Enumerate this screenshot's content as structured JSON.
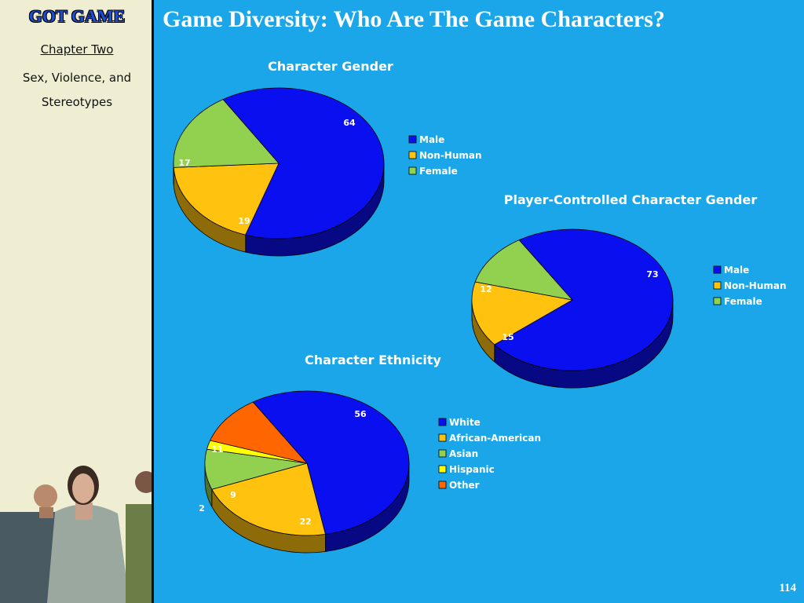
{
  "sidebar": {
    "brand": "GOT GAME",
    "chapter": "Chapter Two",
    "subtitle_line1": "Sex, Violence, and",
    "subtitle_line2": "Stereotypes"
  },
  "slide": {
    "title": "Game Diversity: Who Are The Game Characters?",
    "page_number": "114"
  },
  "chart_data": [
    {
      "type": "pie",
      "title": "Character Gender",
      "categories": [
        "Male",
        "Non-Human",
        "Female"
      ],
      "values": [
        64,
        19,
        17
      ],
      "colors": [
        "#0a0ff0",
        "#ffc20e",
        "#92d050"
      ],
      "legend": "right"
    },
    {
      "type": "pie",
      "title": "Player-Controlled Character Gender",
      "categories": [
        "Male",
        "Non-Human",
        "Female"
      ],
      "values": [
        73,
        15,
        12
      ],
      "colors": [
        "#0a0ff0",
        "#ffc20e",
        "#92d050"
      ],
      "legend": "right"
    },
    {
      "type": "pie",
      "title": "Character Ethnicity",
      "categories": [
        "White",
        "African-American",
        "Asian",
        "Hispanic",
        "Other"
      ],
      "values": [
        56,
        22,
        9,
        2,
        11
      ],
      "colors": [
        "#0a0ff0",
        "#ffc20e",
        "#92d050",
        "#ffff00",
        "#ff6600"
      ],
      "legend": "right"
    }
  ]
}
